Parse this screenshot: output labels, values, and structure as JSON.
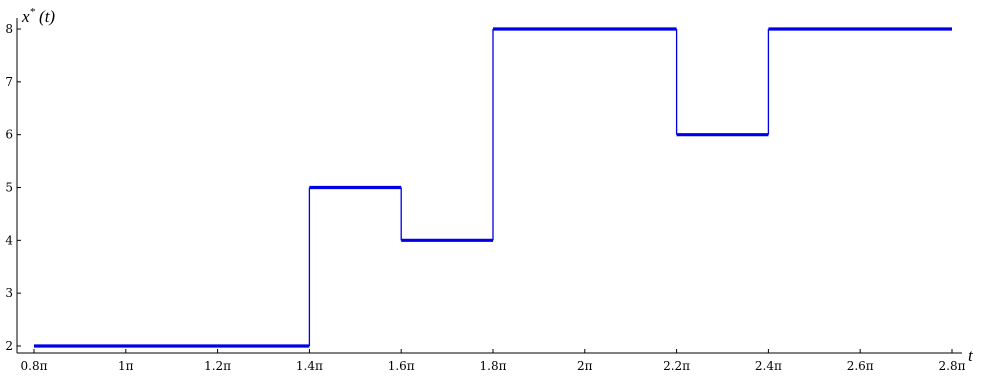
{
  "chart_data": {
    "type": "line",
    "step": true,
    "xlabel": "t",
    "ylabel": "x* (t)",
    "ylabel_parts": {
      "symbol": "x",
      "superscript": "*",
      "argument": "(t)"
    },
    "xlim": [
      0.8,
      2.8
    ],
    "ylim": [
      2,
      8
    ],
    "grid": false,
    "x_ticks": [
      0.8,
      1.0,
      1.2,
      1.4,
      1.6,
      1.8,
      2.0,
      2.2,
      2.4,
      2.6,
      2.8
    ],
    "x_tick_labels": [
      "0.8π",
      "1π",
      "1.2π",
      "1.4π",
      "1.6π",
      "1.8π",
      "2π",
      "2.2π",
      "2.4π",
      "2.6π",
      "2.8π"
    ],
    "y_ticks": [
      2,
      3,
      4,
      5,
      6,
      7,
      8
    ],
    "y_tick_labels": [
      "2",
      "3",
      "4",
      "5",
      "6",
      "7",
      "8"
    ],
    "x_unit": "π",
    "series": [
      {
        "color": "#0000e6",
        "x": [
          0.8,
          1.4,
          1.6,
          1.8,
          2.2,
          2.4,
          2.8
        ],
        "y": [
          2,
          5,
          4,
          8,
          6,
          8,
          8
        ]
      }
    ]
  }
}
